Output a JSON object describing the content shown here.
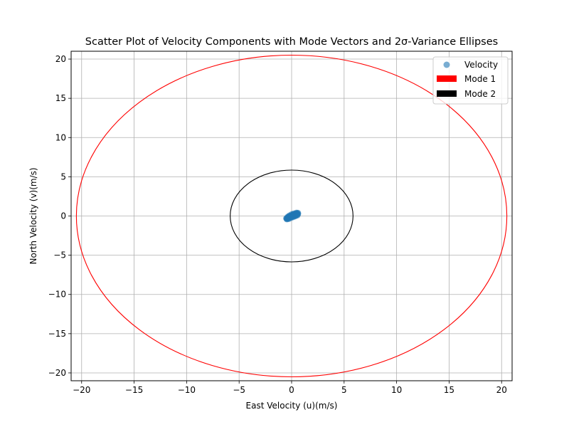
{
  "chart_data": {
    "type": "scatter",
    "title": "Scatter Plot of Velocity Components with Mode Vectors and 2σ-Variance Ellipses",
    "xlabel": "East Velocity (u)(m/s)",
    "ylabel": "North Velocity (v)(m/s)",
    "xlim": [
      -21,
      21
    ],
    "ylim": [
      -21,
      21
    ],
    "xticks": [
      -20,
      -15,
      -10,
      -5,
      0,
      5,
      10,
      15,
      20
    ],
    "yticks": [
      -20,
      -15,
      -10,
      -5,
      0,
      5,
      10,
      15,
      20
    ],
    "xtick_labels": [
      "−20",
      "−15",
      "−10",
      "−5",
      "0",
      "5",
      "10",
      "15",
      "20"
    ],
    "ytick_labels": [
      "−20",
      "−15",
      "−10",
      "−5",
      "0",
      "5",
      "10",
      "15",
      "20"
    ],
    "grid": true,
    "legend_position": "top-right",
    "series": [
      {
        "name": "Velocity",
        "kind": "scatter",
        "color": "#1f77b4",
        "points": [
          [
            -0.45,
            -0.32
          ],
          [
            -0.4,
            -0.25
          ],
          [
            -0.35,
            -0.2
          ],
          [
            -0.3,
            -0.15
          ],
          [
            -0.25,
            -0.1
          ],
          [
            -0.2,
            -0.08
          ],
          [
            -0.15,
            -0.05
          ],
          [
            -0.1,
            0.0
          ],
          [
            -0.05,
            0.02
          ],
          [
            0.0,
            0.05
          ],
          [
            0.05,
            0.08
          ],
          [
            0.1,
            0.12
          ],
          [
            0.15,
            0.15
          ],
          [
            0.2,
            0.18
          ],
          [
            0.25,
            0.2
          ],
          [
            0.3,
            0.22
          ],
          [
            0.35,
            0.25
          ],
          [
            0.4,
            0.28
          ],
          [
            0.45,
            0.3
          ],
          [
            0.5,
            0.32
          ],
          [
            0.55,
            0.3
          ],
          [
            0.6,
            0.25
          ],
          [
            0.5,
            0.15
          ],
          [
            0.4,
            0.1
          ],
          [
            0.3,
            0.05
          ],
          [
            0.2,
            0.0
          ],
          [
            0.1,
            -0.05
          ],
          [
            0.0,
            -0.1
          ],
          [
            -0.1,
            -0.15
          ],
          [
            -0.2,
            -0.2
          ],
          [
            -0.3,
            -0.28
          ],
          [
            -0.4,
            -0.35
          ],
          [
            -0.5,
            -0.3
          ],
          [
            -0.35,
            -0.1
          ],
          [
            -0.2,
            0.05
          ],
          [
            0.0,
            0.2
          ],
          [
            0.2,
            0.3
          ],
          [
            0.45,
            0.4
          ],
          [
            0.6,
            0.38
          ],
          [
            0.55,
            0.1
          ],
          [
            0.35,
            -0.02
          ],
          [
            0.15,
            -0.12
          ],
          [
            -0.05,
            -0.22
          ],
          [
            -0.25,
            -0.35
          ],
          [
            -0.45,
            -0.4
          ]
        ]
      },
      {
        "name": "Mode 1",
        "kind": "ellipse",
        "color": "#ff0000",
        "center": [
          0,
          0
        ],
        "rx": 20.5,
        "ry": 20.5
      },
      {
        "name": "Mode 2",
        "kind": "ellipse",
        "color": "#000000",
        "center": [
          0,
          0
        ],
        "rx": 5.85,
        "ry": 5.85
      }
    ]
  }
}
